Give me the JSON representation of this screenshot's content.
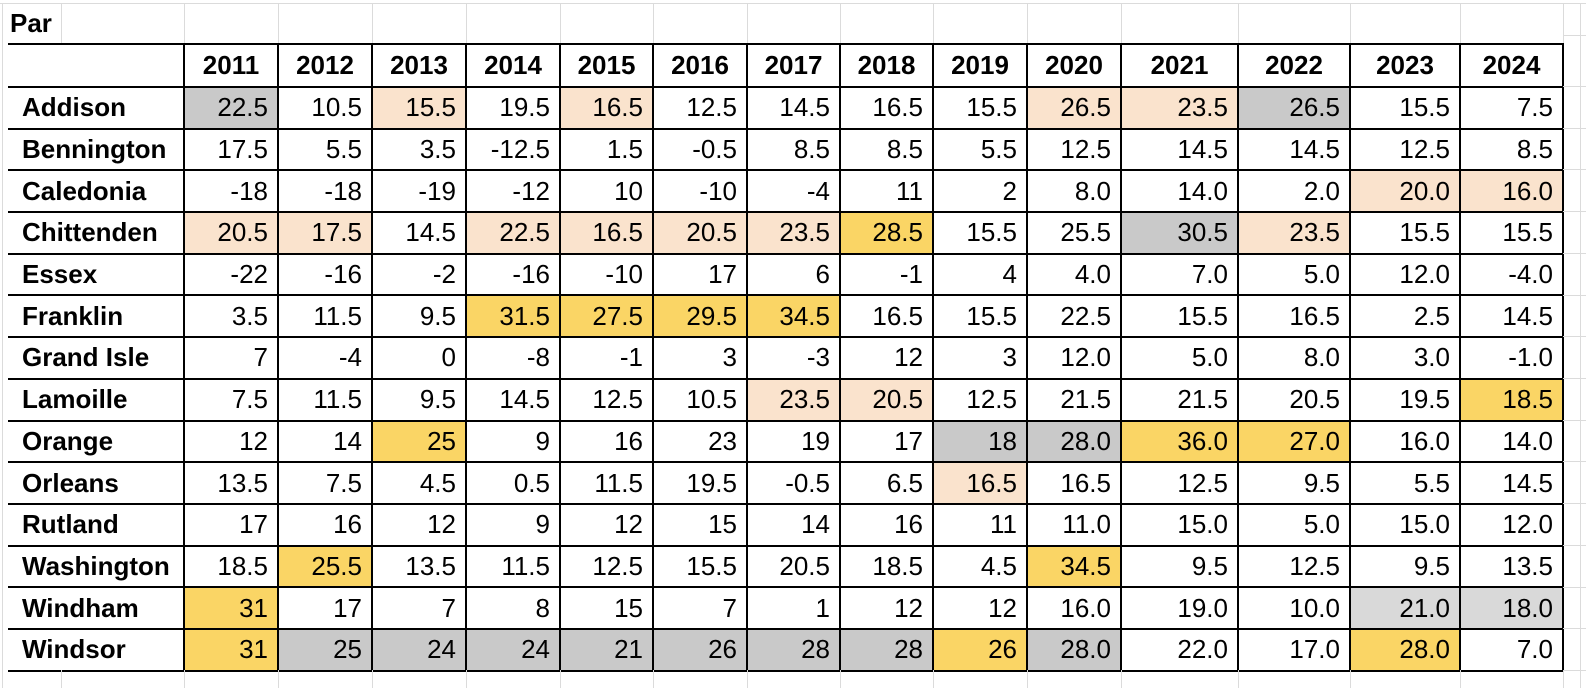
{
  "sheet": {
    "corner_label": "Par"
  },
  "colors": {
    "peach": "#FAE3CD",
    "gold": "#FAD565",
    "gray": "#C9C9C9",
    "lightgray": "#D9D9D9",
    "border": "#000000",
    "grid": "#DBDBDB"
  },
  "table": {
    "years": [
      "2011",
      "2012",
      "2013",
      "2014",
      "2015",
      "2016",
      "2017",
      "2018",
      "2019",
      "2020",
      "2021",
      "2022",
      "2023",
      "2024"
    ],
    "rows": [
      {
        "name": "Addison",
        "values": [
          "22.5",
          "10.5",
          "15.5",
          "19.5",
          "16.5",
          "12.5",
          "14.5",
          "16.5",
          "15.5",
          "26.5",
          "23.5",
          "26.5",
          "15.5",
          "7.5"
        ],
        "fills": [
          "gray",
          "",
          "peach",
          "",
          "peach",
          "",
          "",
          "",
          "",
          "peach",
          "peach",
          "gray",
          "",
          ""
        ]
      },
      {
        "name": "Bennington",
        "values": [
          "17.5",
          "5.5",
          "3.5",
          "-12.5",
          "1.5",
          "-0.5",
          "8.5",
          "8.5",
          "5.5",
          "12.5",
          "14.5",
          "14.5",
          "12.5",
          "8.5"
        ],
        "fills": [
          "",
          "",
          "",
          "",
          "",
          "",
          "",
          "",
          "",
          "",
          "",
          "",
          "",
          ""
        ]
      },
      {
        "name": "Caledonia",
        "values": [
          "-18",
          "-18",
          "-19",
          "-12",
          "10",
          "-10",
          "-4",
          "11",
          "2",
          "8.0",
          "14.0",
          "2.0",
          "20.0",
          "16.0"
        ],
        "fills": [
          "",
          "",
          "",
          "",
          "",
          "",
          "",
          "",
          "",
          "",
          "",
          "",
          "peach",
          "peach"
        ]
      },
      {
        "name": "Chittenden",
        "values": [
          "20.5",
          "17.5",
          "14.5",
          "22.5",
          "16.5",
          "20.5",
          "23.5",
          "28.5",
          "15.5",
          "25.5",
          "30.5",
          "23.5",
          "15.5",
          "15.5"
        ],
        "fills": [
          "peach",
          "peach",
          "",
          "peach",
          "peach",
          "peach",
          "peach",
          "gold",
          "",
          "",
          "gray",
          "peach",
          "",
          ""
        ]
      },
      {
        "name": "Essex",
        "values": [
          "-22",
          "-16",
          "-2",
          "-16",
          "-10",
          "17",
          "6",
          "-1",
          "4",
          "4.0",
          "7.0",
          "5.0",
          "12.0",
          "-4.0"
        ],
        "fills": [
          "",
          "",
          "",
          "",
          "",
          "",
          "",
          "",
          "",
          "",
          "",
          "",
          "",
          ""
        ]
      },
      {
        "name": "Franklin",
        "values": [
          "3.5",
          "11.5",
          "9.5",
          "31.5",
          "27.5",
          "29.5",
          "34.5",
          "16.5",
          "15.5",
          "22.5",
          "15.5",
          "16.5",
          "2.5",
          "14.5"
        ],
        "fills": [
          "",
          "",
          "",
          "gold",
          "gold",
          "gold",
          "gold",
          "",
          "",
          "",
          "",
          "",
          "",
          ""
        ]
      },
      {
        "name": "Grand Isle",
        "values": [
          "7",
          "-4",
          "0",
          "-8",
          "-1",
          "3",
          "-3",
          "12",
          "3",
          "12.0",
          "5.0",
          "8.0",
          "3.0",
          "-1.0"
        ],
        "fills": [
          "",
          "",
          "",
          "",
          "",
          "",
          "",
          "",
          "",
          "",
          "",
          "",
          "",
          ""
        ]
      },
      {
        "name": "Lamoille",
        "values": [
          "7.5",
          "11.5",
          "9.5",
          "14.5",
          "12.5",
          "10.5",
          "23.5",
          "20.5",
          "12.5",
          "21.5",
          "21.5",
          "20.5",
          "19.5",
          "18.5"
        ],
        "fills": [
          "",
          "",
          "",
          "",
          "",
          "",
          "peach",
          "peach",
          "",
          "",
          "",
          "",
          "",
          "gold"
        ]
      },
      {
        "name": "Orange",
        "values": [
          "12",
          "14",
          "25",
          "9",
          "16",
          "23",
          "19",
          "17",
          "18",
          "28.0",
          "36.0",
          "27.0",
          "16.0",
          "14.0"
        ],
        "fills": [
          "",
          "",
          "gold",
          "",
          "",
          "",
          "",
          "",
          "gray",
          "gray",
          "gold",
          "gold",
          "",
          ""
        ]
      },
      {
        "name": "Orleans",
        "values": [
          "13.5",
          "7.5",
          "4.5",
          "0.5",
          "11.5",
          "19.5",
          "-0.5",
          "6.5",
          "16.5",
          "16.5",
          "12.5",
          "9.5",
          "5.5",
          "14.5"
        ],
        "fills": [
          "",
          "",
          "",
          "",
          "",
          "",
          "",
          "",
          "peach",
          "",
          "",
          "",
          "",
          ""
        ]
      },
      {
        "name": "Rutland",
        "values": [
          "17",
          "16",
          "12",
          "9",
          "12",
          "15",
          "14",
          "16",
          "11",
          "11.0",
          "15.0",
          "5.0",
          "15.0",
          "12.0"
        ],
        "fills": [
          "",
          "",
          "",
          "",
          "",
          "",
          "",
          "",
          "",
          "",
          "",
          "",
          "",
          ""
        ]
      },
      {
        "name": "Washington",
        "values": [
          "18.5",
          "25.5",
          "13.5",
          "11.5",
          "12.5",
          "15.5",
          "20.5",
          "18.5",
          "4.5",
          "34.5",
          "9.5",
          "12.5",
          "9.5",
          "13.5"
        ],
        "fills": [
          "",
          "gold",
          "",
          "",
          "",
          "",
          "",
          "",
          "",
          "gold",
          "",
          "",
          "",
          ""
        ]
      },
      {
        "name": "Windham",
        "values": [
          "31",
          "17",
          "7",
          "8",
          "15",
          "7",
          "1",
          "12",
          "12",
          "16.0",
          "19.0",
          "10.0",
          "21.0",
          "18.0"
        ],
        "fills": [
          "gold",
          "",
          "",
          "",
          "",
          "",
          "",
          "",
          "",
          "",
          "",
          "",
          "lightgray",
          "lightgray"
        ]
      },
      {
        "name": "Windsor",
        "values": [
          "31",
          "25",
          "24",
          "24",
          "21",
          "26",
          "28",
          "28",
          "26",
          "28.0",
          "22.0",
          "17.0",
          "28.0",
          "7.0"
        ],
        "fills": [
          "gold",
          "gray",
          "gray",
          "gray",
          "gray",
          "gray",
          "gray",
          "gray",
          "gold",
          "gray",
          "",
          "",
          "gold",
          ""
        ]
      }
    ]
  }
}
